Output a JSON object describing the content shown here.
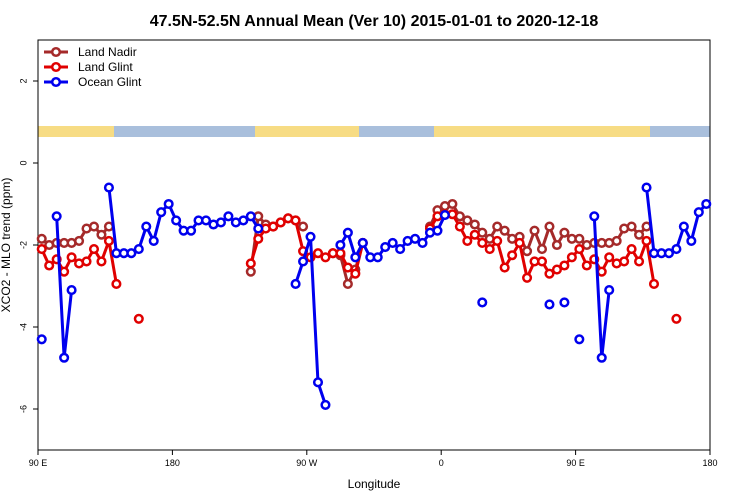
{
  "chart_data": {
    "type": "line",
    "title": "47.5N-52.5N Annual Mean (Ver 10)   2015-01-01 to 2020-12-18",
    "x_label": "Longitude",
    "y_label": "XCO2 - MLO trend (ppm)",
    "x": [
      92.5,
      97.5,
      102.5,
      107.5,
      112.5,
      117.5,
      122.5,
      127.5,
      132.5,
      137.5,
      142.5,
      147.5,
      152.5,
      157.5,
      162.5,
      167.5,
      172.5,
      177.5,
      182.5,
      187.5,
      192.5,
      197.5,
      202.5,
      207.5,
      212.5,
      217.5,
      222.5,
      227.5,
      232.5,
      237.5,
      242.5,
      247.5,
      252.5,
      257.5,
      262.5,
      267.5,
      272.5,
      277.5,
      282.5,
      287.5,
      292.5,
      297.5,
      302.5,
      307.5,
      312.5,
      317.5,
      322.5,
      327.5,
      332.5,
      337.5,
      342.5,
      347.5,
      352.5,
      357.5,
      362.5,
      367.5,
      372.5,
      377.5,
      382.5,
      387.5,
      392.5,
      397.5,
      402.5,
      407.5,
      412.5,
      417.5,
      422.5,
      427.5,
      432.5,
      437.5,
      442.5,
      447.5,
      452.5,
      457.5,
      462.5,
      467.5,
      472.5,
      477.5,
      482.5,
      487.5,
      492.5,
      497.5,
      502.5,
      507.5,
      512.5,
      517.5,
      522.5,
      527.5,
      532.5,
      537.5
    ],
    "series": [
      {
        "name": "Land Nadir",
        "color": "#a52a2a",
        "values": [
          -1.85,
          -2.0,
          -1.95,
          -1.95,
          -1.95,
          -1.9,
          -1.6,
          -1.55,
          -1.75,
          -1.55,
          null,
          null,
          null,
          null,
          null,
          null,
          null,
          null,
          null,
          null,
          null,
          null,
          null,
          null,
          null,
          null,
          null,
          null,
          -2.65,
          -1.3,
          -1.5,
          -1.55,
          -1.45,
          -1.35,
          -1.4,
          -1.55,
          null,
          null,
          null,
          -2.2,
          -2.25,
          -2.95,
          -2.6,
          -1.95,
          null,
          null,
          null,
          null,
          null,
          null,
          null,
          null,
          -1.55,
          -1.15,
          -1.05,
          -1.0,
          -1.3,
          -1.4,
          -1.5,
          -1.7,
          -1.85,
          -1.55,
          -1.65,
          -1.85,
          -1.8,
          -2.15,
          -1.65,
          -2.1,
          -1.55,
          -2.0,
          -1.7,
          -1.85,
          -1.85,
          -2.0,
          -1.95,
          -1.95,
          -1.95,
          -1.9,
          -1.6,
          -1.55,
          -1.75,
          -1.55,
          null,
          null,
          null,
          null,
          null,
          null,
          null,
          null
        ]
      },
      {
        "name": "Land Glint",
        "color": "#e00000",
        "values": [
          -2.1,
          -2.5,
          -2.35,
          -2.65,
          -2.3,
          -2.45,
          -2.4,
          -2.1,
          -2.4,
          -1.9,
          -2.95,
          null,
          null,
          -3.8,
          null,
          null,
          null,
          null,
          null,
          null,
          null,
          null,
          null,
          null,
          null,
          null,
          null,
          null,
          -2.45,
          -1.85,
          -1.6,
          -1.55,
          -1.45,
          -1.35,
          -1.4,
          -2.15,
          -2.3,
          -2.2,
          -2.3,
          -2.2,
          -2.2,
          -2.55,
          -2.7,
          -1.95,
          null,
          null,
          null,
          null,
          null,
          null,
          null,
          null,
          -1.6,
          -1.3,
          -1.25,
          -1.25,
          -1.55,
          -1.9,
          -1.75,
          -1.95,
          -2.1,
          -1.9,
          -2.55,
          -2.25,
          -1.95,
          -2.8,
          -2.4,
          -2.4,
          -2.7,
          -2.6,
          -2.5,
          -2.3,
          -2.1,
          -2.5,
          -2.35,
          -2.65,
          -2.3,
          -2.45,
          -2.4,
          -2.1,
          -2.4,
          -1.9,
          -2.95,
          null,
          null,
          -3.8,
          null,
          null,
          null,
          null
        ]
      },
      {
        "name": "Ocean Glint",
        "color": "#0000ee",
        "values": [
          -4.3,
          null,
          -1.3,
          -4.75,
          -3.1,
          null,
          null,
          null,
          null,
          -0.6,
          -2.2,
          -2.2,
          -2.2,
          -2.1,
          -1.55,
          -1.9,
          -1.2,
          -1.0,
          -1.4,
          -1.65,
          -1.65,
          -1.4,
          -1.4,
          -1.5,
          -1.45,
          -1.3,
          -1.45,
          -1.4,
          -1.3,
          -1.6,
          null,
          null,
          null,
          null,
          -2.95,
          -2.4,
          -1.8,
          -5.35,
          -5.9,
          null,
          -2.0,
          -1.7,
          -2.3,
          -1.95,
          -2.3,
          -2.3,
          -2.05,
          -1.95,
          -2.1,
          -1.9,
          -1.85,
          -1.95,
          -1.7,
          -1.65,
          -1.27,
          null,
          null,
          null,
          null,
          -3.4,
          null,
          null,
          null,
          null,
          null,
          null,
          null,
          null,
          -3.45,
          null,
          -3.4,
          null,
          -4.3,
          null,
          -1.3,
          -4.75,
          -3.1,
          null,
          null,
          null,
          null,
          -0.6,
          -2.2,
          -2.2,
          -2.2,
          -2.1,
          -1.55,
          -1.9,
          -1.2,
          -1.0
        ]
      }
    ],
    "xlim": [
      90,
      540
    ],
    "xticks": [
      {
        "value": 90,
        "label": "90 E"
      },
      180,
      {
        "value": 270,
        "label": "90 W"
      },
      {
        "value": 360,
        "label": "0"
      },
      {
        "value": 450,
        "label": "90 E"
      },
      {
        "value": 540,
        "label": "180"
      }
    ],
    "ylim": [
      -7,
      3
    ],
    "yticks": [
      -6,
      -4,
      -2,
      0,
      2
    ],
    "legend": "top-left"
  }
}
